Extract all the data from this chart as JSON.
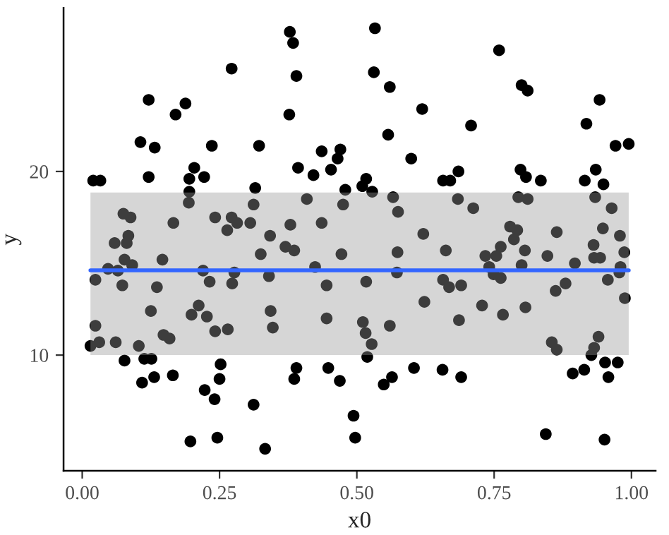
{
  "chart_data": {
    "type": "scatter",
    "xlabel": "x0",
    "ylabel": "y",
    "xlim": [
      -0.034,
      1.044
    ],
    "ylim": [
      3.7,
      28.9
    ],
    "xticks": [
      {
        "value": 0,
        "label": "0.00"
      },
      {
        "value": 0.25,
        "label": "0.25"
      },
      {
        "value": 0.5,
        "label": "0.50"
      },
      {
        "value": 0.75,
        "label": "0.75"
      },
      {
        "value": 1,
        "label": "1.00"
      }
    ],
    "yticks": [
      10,
      20
    ],
    "grid": false,
    "series": [
      {
        "color": "#000000",
        "marker": "circle",
        "x": [
          0.272,
          0.121,
          0.188,
          0.17,
          0.106,
          0.132,
          0.236,
          0.322,
          0.02,
          0.033,
          0.121,
          0.204,
          0.195,
          0.222,
          0.195,
          0.315,
          0.194,
          0.312,
          0.075,
          0.088,
          0.166,
          0.242,
          0.272,
          0.282,
          0.306,
          0.264,
          0.084,
          0.378,
          0.384,
          0.533,
          0.39,
          0.531,
          0.56,
          0.377,
          0.619,
          0.557,
          0.436,
          0.47,
          0.465,
          0.393,
          0.421,
          0.453,
          0.599,
          0.517,
          0.51,
          0.479,
          0.528,
          0.657,
          0.67,
          0.685,
          0.409,
          0.475,
          0.566,
          0.575,
          0.684,
          0.379,
          0.436,
          0.342,
          0.621,
          0.759,
          0.8,
          0.811,
          0.942,
          0.708,
          0.918,
          0.971,
          0.995,
          0.798,
          0.808,
          0.835,
          0.935,
          0.915,
          0.949,
          0.712,
          0.794,
          0.811,
          0.934,
          0.964,
          0.779,
          0.792,
          0.864,
          0.948,
          0.979,
          0.059,
          0.081,
          0.077,
          0.091,
          0.146,
          0.047,
          0.065,
          0.024,
          0.073,
          0.136,
          0.22,
          0.232,
          0.273,
          0.277,
          0.325,
          0.125,
          0.212,
          0.199,
          0.227,
          0.242,
          0.265,
          0.024,
          0.148,
          0.159,
          0.015,
          0.031,
          0.061,
          0.103,
          0.077,
          0.113,
          0.126,
          0.252,
          0.109,
          0.131,
          0.165,
          0.25,
          0.223,
          0.241,
          0.312,
          0.197,
          0.246,
          0.333,
          0.37,
          0.386,
          0.472,
          0.574,
          0.662,
          0.34,
          0.424,
          0.445,
          0.517,
          0.573,
          0.623,
          0.657,
          0.668,
          0.69,
          0.343,
          0.347,
          0.445,
          0.511,
          0.516,
          0.527,
          0.56,
          0.686,
          0.519,
          0.39,
          0.386,
          0.448,
          0.469,
          0.549,
          0.564,
          0.604,
          0.656,
          0.69,
          0.494,
          0.497,
          0.786,
          0.734,
          0.754,
          0.762,
          0.806,
          0.847,
          0.931,
          0.932,
          0.943,
          0.987,
          0.741,
          0.749,
          0.762,
          0.8,
          0.897,
          0.98,
          0.978,
          0.88,
          0.862,
          0.957,
          0.728,
          0.766,
          0.807,
          0.988,
          0.855,
          0.864,
          0.94,
          0.932,
          0.927,
          0.952,
          0.975,
          0.958,
          0.893,
          0.914,
          0.844,
          0.951
        ],
        "values": [
          25.6,
          23.9,
          23.7,
          23.1,
          21.6,
          21.3,
          21.4,
          21.4,
          19.5,
          19.5,
          19.7,
          20.2,
          19.6,
          19.7,
          18.9,
          19.1,
          18.3,
          18.2,
          17.7,
          17.5,
          17.2,
          17.5,
          17.5,
          17.2,
          17.2,
          16.8,
          16.5,
          27.6,
          27.0,
          27.8,
          25.2,
          25.4,
          24.6,
          23.1,
          23.4,
          22.0,
          21.1,
          21.2,
          20.7,
          20.2,
          19.8,
          20.1,
          20.7,
          19.6,
          19.2,
          19.0,
          18.9,
          19.5,
          19.5,
          20.0,
          18.5,
          18.2,
          18.6,
          17.8,
          18.5,
          17.1,
          17.2,
          16.5,
          16.6,
          26.6,
          24.7,
          24.4,
          23.9,
          22.5,
          22.6,
          21.4,
          21.5,
          20.1,
          19.7,
          19.5,
          20.1,
          19.5,
          19.3,
          18.0,
          18.6,
          18.5,
          18.6,
          18.0,
          17.0,
          16.8,
          16.7,
          16.9,
          16.5,
          16.1,
          16.1,
          15.2,
          14.9,
          15.2,
          14.7,
          14.6,
          14.1,
          13.8,
          13.7,
          14.6,
          14.0,
          13.9,
          14.5,
          15.5,
          12.4,
          12.7,
          12.2,
          12.1,
          11.3,
          11.4,
          11.6,
          11.1,
          10.9,
          10.5,
          10.7,
          10.7,
          10.5,
          9.7,
          9.8,
          9.8,
          9.5,
          8.5,
          8.8,
          8.9,
          8.7,
          8.1,
          7.6,
          7.3,
          5.3,
          5.5,
          4.9,
          15.9,
          15.7,
          15.5,
          15.6,
          15.7,
          14.3,
          14.8,
          13.8,
          14.0,
          14.5,
          12.9,
          14.1,
          13.7,
          13.8,
          12.4,
          11.5,
          12.0,
          11.8,
          11.2,
          10.6,
          11.6,
          11.9,
          9.9,
          9.3,
          8.7,
          9.3,
          8.6,
          8.4,
          8.8,
          9.3,
          9.2,
          8.8,
          6.7,
          5.5,
          16.3,
          15.4,
          15.4,
          15.9,
          15.7,
          15.4,
          16.0,
          15.3,
          15.3,
          15.6,
          14.8,
          14.4,
          14.2,
          14.9,
          15.0,
          14.8,
          14.5,
          13.9,
          13.5,
          14.1,
          12.7,
          12.2,
          12.6,
          13.1,
          10.7,
          10.3,
          11.0,
          10.4,
          10.0,
          9.6,
          9.6,
          8.8,
          9.0,
          9.2,
          5.7,
          5.4
        ]
      },
      {
        "type": "line",
        "color": "#3366ff",
        "x": [
          0.015,
          0.995
        ],
        "values": [
          14.62,
          14.62
        ],
        "lower": [
          10.0,
          10.0
        ],
        "upper": [
          18.85,
          18.85
        ]
      }
    ]
  }
}
